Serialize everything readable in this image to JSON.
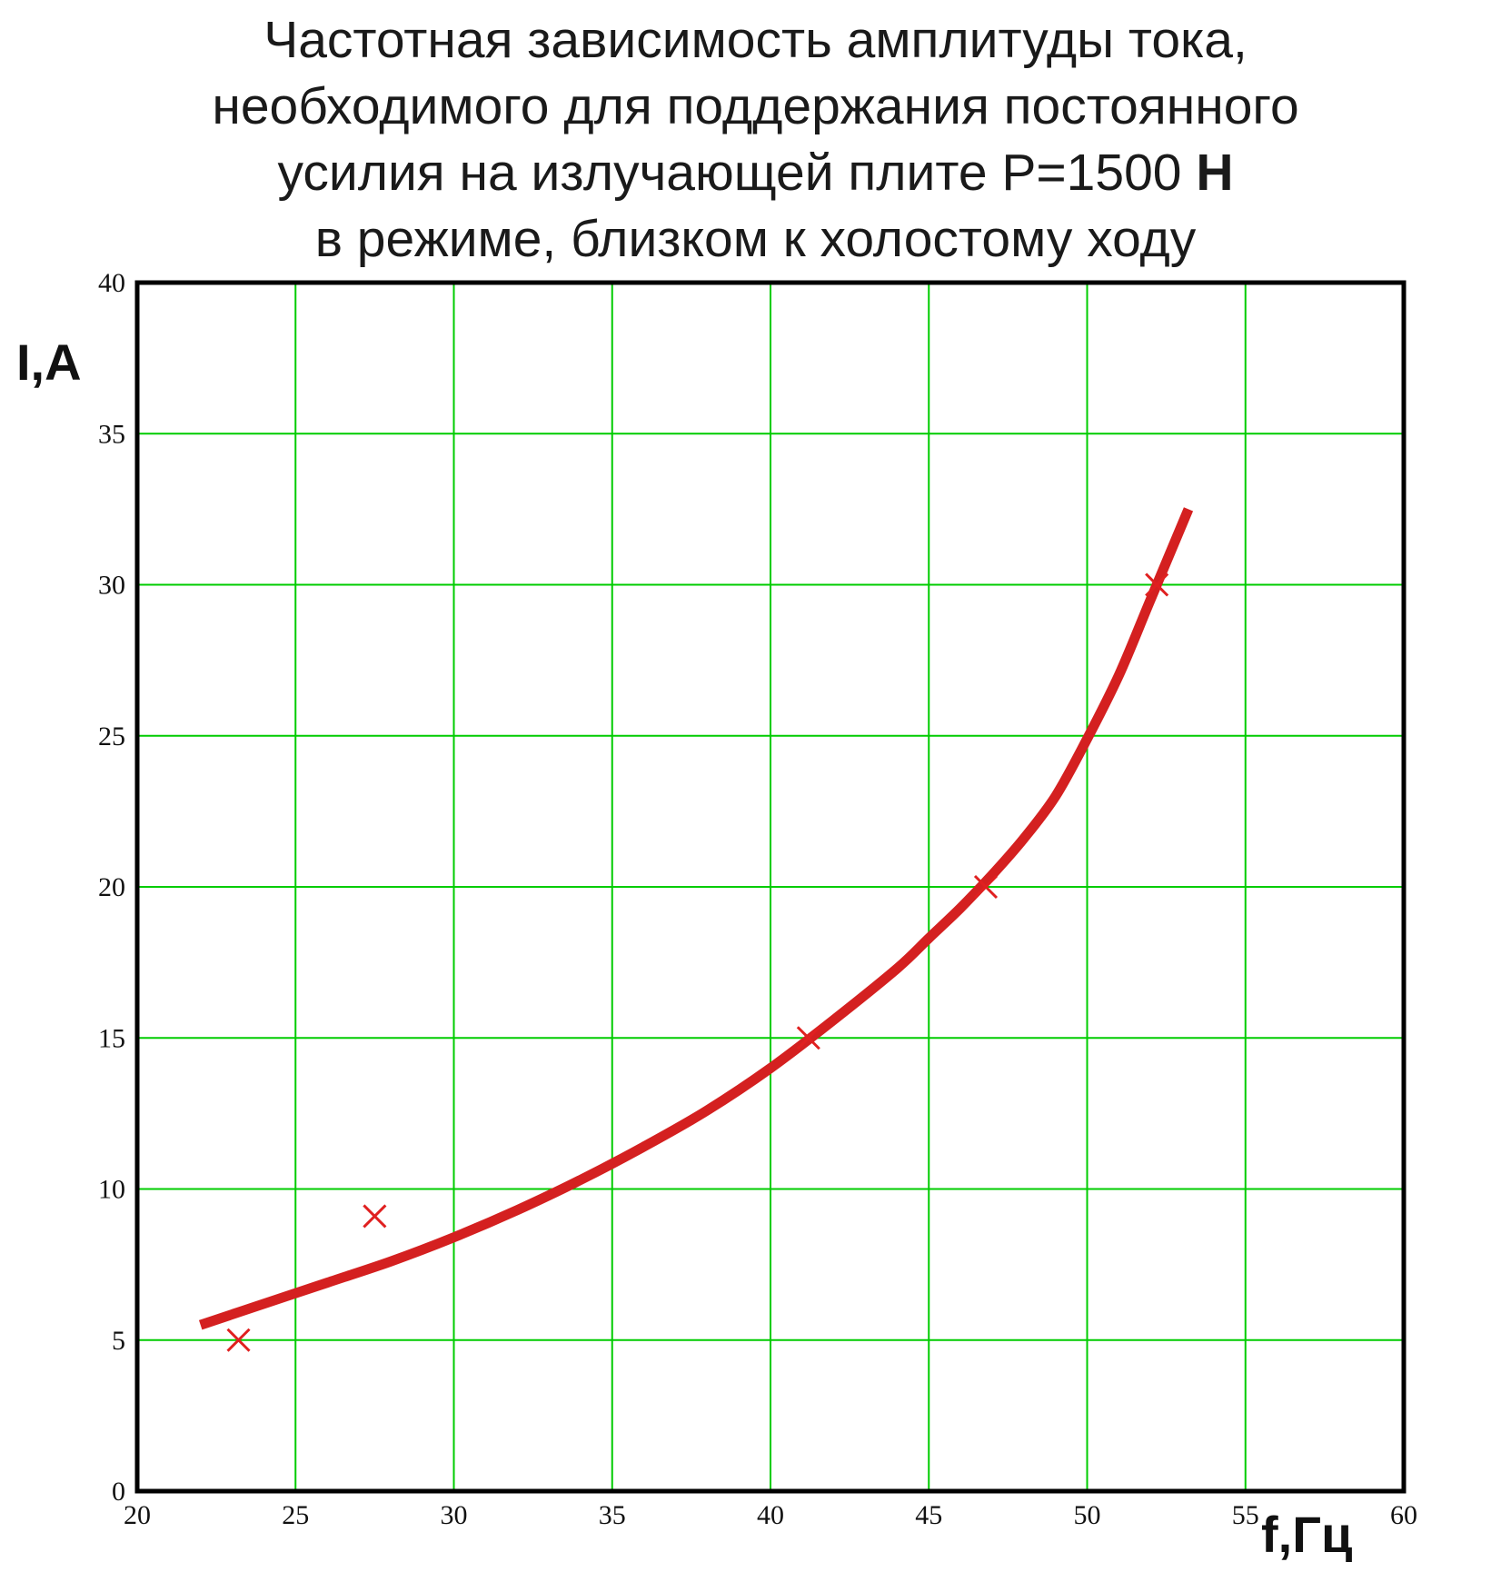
{
  "title": {
    "line1": "Частотная зависимость амплитуды тока,",
    "line2": "необходимого для поддержания постоянного",
    "line3_text": "усилия на излучающей плите P=1500 ",
    "line3_unit": "Н",
    "line4": "в режиме, близком к холостому ходу"
  },
  "colors": {
    "grid": "#00cc00",
    "curve": "#d42020",
    "markers": "#e02020",
    "axes": "#000000"
  },
  "chart_data": {
    "type": "line",
    "title": "Частотная зависимость амплитуды тока, необходимого для поддержания постоянного усилия на излучающей плите P=1500 Н в режиме, близком к холостому ходу",
    "xlabel": "f,Гц",
    "ylabel": "I,A",
    "xlim": [
      20,
      60
    ],
    "ylim": [
      0,
      40
    ],
    "x_ticks": [
      20,
      25,
      30,
      35,
      40,
      45,
      50,
      55,
      60
    ],
    "x_tick_labels": [
      "20",
      "25",
      "30",
      "35",
      "40",
      "45",
      "50",
      "55",
      "60"
    ],
    "y_ticks": [
      0,
      5,
      10,
      15,
      20,
      25,
      30,
      35,
      40
    ],
    "y_tick_labels": [
      "0",
      "5",
      "10",
      "15",
      "20",
      "25",
      "30",
      "35",
      "40"
    ],
    "grid": true,
    "series": [
      {
        "kind": "line",
        "x": [
          22,
          24,
          26,
          28,
          30,
          32,
          34,
          36,
          38,
          40,
          42,
          44,
          45,
          46,
          47,
          48,
          49,
          50,
          51,
          52,
          53.2
        ],
        "y": [
          5.5,
          6.2,
          6.9,
          7.6,
          8.4,
          9.3,
          10.3,
          11.4,
          12.6,
          14.0,
          15.6,
          17.3,
          18.3,
          19.3,
          20.4,
          21.6,
          23.0,
          24.9,
          27.0,
          29.5,
          32.5
        ]
      },
      {
        "kind": "scatter",
        "marker": "x",
        "x": [
          23.2,
          27.5,
          41.2,
          46.8,
          52.2
        ],
        "y": [
          5.0,
          9.1,
          15.0,
          20.0,
          30.0
        ]
      }
    ]
  }
}
